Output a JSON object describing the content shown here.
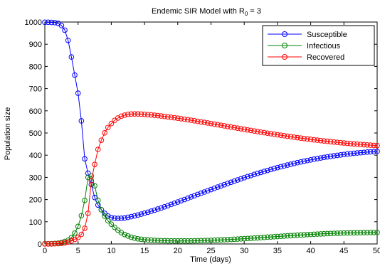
{
  "chart_data": {
    "type": "line",
    "title_main": "Endemic SIR Model with R",
    "title_sub": "0",
    "title_tail": " = 3",
    "xlabel": "Time (days)",
    "ylabel": "Population size",
    "xlim": [
      0,
      50
    ],
    "ylim": [
      0,
      1000
    ],
    "xticks": [
      0,
      5,
      10,
      15,
      20,
      25,
      30,
      35,
      40,
      45,
      50
    ],
    "yticks": [
      0,
      100,
      200,
      300,
      400,
      500,
      600,
      700,
      800,
      900,
      1000
    ],
    "grid": false,
    "legend_position": "top-right",
    "marker": "circle",
    "x": [
      0,
      0.5,
      1,
      1.5,
      2,
      2.5,
      3,
      3.5,
      4,
      4.5,
      5,
      5.5,
      6,
      6.5,
      7,
      7.5,
      8,
      8.5,
      9,
      9.5,
      10,
      10.5,
      11,
      11.5,
      12,
      12.5,
      13,
      13.5,
      14,
      14.5,
      15,
      15.5,
      16,
      16.5,
      17,
      17.5,
      18,
      18.5,
      19,
      19.5,
      20,
      20.5,
      21,
      21.5,
      22,
      22.5,
      23,
      23.5,
      24,
      24.5,
      25,
      25.5,
      26,
      26.5,
      27,
      27.5,
      28,
      28.5,
      29,
      29.5,
      30,
      30.5,
      31,
      31.5,
      32,
      32.5,
      33,
      33.5,
      34,
      34.5,
      35,
      35.5,
      36,
      36.5,
      37,
      37.5,
      38,
      38.5,
      39,
      39.5,
      40,
      40.5,
      41,
      41.5,
      42,
      42.5,
      43,
      43.5,
      44,
      44.5,
      45,
      45.5,
      46,
      46.5,
      47,
      47.5,
      48,
      48.5,
      49,
      49.5,
      50
    ],
    "series": [
      {
        "name": "Susceptible",
        "color": "#0000ff",
        "values": [
          999.0,
          998.9,
          998.3,
          997.5,
          994.3,
          984.4,
          963.5,
          917.4,
          842.6,
          761.2,
          679.3,
          554.6,
          383.6,
          318.6,
          267.9,
          209.3,
          175.3,
          154.6,
          138.0,
          125.8,
          118.6,
          115.9,
          115.3,
          115.6,
          117.2,
          119.9,
          123.1,
          126.6,
          130.5,
          134.5,
          138.7,
          143.0,
          147.5,
          152.2,
          157.1,
          162.1,
          167.3,
          172.6,
          178.0,
          183.5,
          189.0,
          194.7,
          200.3,
          205.9,
          211.6,
          217.3,
          222.9,
          228.5,
          234.0,
          239.6,
          245.1,
          250.6,
          256.2,
          261.6,
          267.1,
          272.5,
          277.8,
          283.1,
          288.3,
          293.5,
          298.5,
          303.5,
          308.4,
          313.1,
          317.8,
          322.4,
          326.9,
          331.3,
          335.7,
          339.9,
          344.0,
          348.0,
          351.8,
          355.6,
          359.3,
          362.8,
          366.3,
          369.6,
          372.8,
          375.9,
          378.9,
          381.9,
          384.7,
          387.4,
          390.0,
          392.5,
          394.8,
          397.1,
          399.2,
          401.3,
          403.2,
          405.1,
          406.8,
          408.4,
          409.9,
          411.4,
          412.7,
          414.0,
          415.1,
          416.2,
          417.2
        ]
      },
      {
        "name": "Infectious",
        "color": "#008000",
        "values": [
          1.0,
          1.1,
          1.4,
          2.3,
          3.5,
          6.2,
          11.1,
          16.8,
          28.5,
          48.6,
          79.1,
          127.4,
          196.2,
          299.8,
          306.1,
          262.1,
          196.7,
          154.2,
          125.1,
          104.6,
          89.2,
          74.7,
          61.9,
          51.2,
          42.7,
          35.8,
          30.4,
          26.3,
          23.2,
          21.0,
          19.3,
          18.1,
          17.1,
          16.3,
          15.6,
          15.1,
          14.6,
          14.3,
          14.0,
          13.8,
          13.7,
          13.7,
          13.7,
          13.8,
          14.0,
          14.2,
          14.5,
          14.9,
          15.3,
          15.8,
          16.3,
          16.9,
          17.5,
          18.2,
          18.9,
          19.6,
          20.4,
          21.2,
          22.0,
          22.9,
          23.8,
          24.7,
          25.6,
          26.5,
          27.5,
          28.5,
          29.5,
          30.5,
          31.5,
          32.5,
          33.5,
          34.5,
          35.5,
          36.5,
          37.5,
          38.4,
          39.4,
          40.3,
          41.2,
          42.1,
          42.9,
          43.7,
          44.5,
          45.2,
          45.9,
          46.6,
          47.2,
          47.8,
          48.3,
          48.8,
          49.3,
          49.7,
          50.1,
          50.4,
          50.7,
          50.9,
          51.1,
          51.3,
          51.5,
          51.6,
          51.7
        ]
      },
      {
        "name": "Recovered",
        "color": "#ff0000",
        "values": [
          0.0,
          0.1,
          0.3,
          0.8,
          1.6,
          3.0,
          5.2,
          8.7,
          13.7,
          20.6,
          29.5,
          43.0,
          70.8,
          138.1,
          284.9,
          358.4,
          426.0,
          467.5,
          500.7,
          524.8,
          542.6,
          556.9,
          567.7,
          575.4,
          580.5,
          583.7,
          585.4,
          586.0,
          585.8,
          585.1,
          584.1,
          582.9,
          581.5,
          580.0,
          578.4,
          576.6,
          574.8,
          572.9,
          570.9,
          568.8,
          566.6,
          564.4,
          562.1,
          559.8,
          557.4,
          555.0,
          552.5,
          550.0,
          547.5,
          545.0,
          542.5,
          539.9,
          537.3,
          534.7,
          532.1,
          529.5,
          526.9,
          524.3,
          521.7,
          519.1,
          516.6,
          514.0,
          511.5,
          509.0,
          506.5,
          504.0,
          501.6,
          499.2,
          496.8,
          494.5,
          492.2,
          489.9,
          487.7,
          485.5,
          483.3,
          481.2,
          479.1,
          477.1,
          475.1,
          473.2,
          471.3,
          469.4,
          467.6,
          465.9,
          464.2,
          462.5,
          460.9,
          459.3,
          457.8,
          456.3,
          454.9,
          453.5,
          452.2,
          450.9,
          449.7,
          448.5,
          447.4,
          446.3,
          445.2,
          444.2,
          443.3
        ]
      }
    ]
  }
}
